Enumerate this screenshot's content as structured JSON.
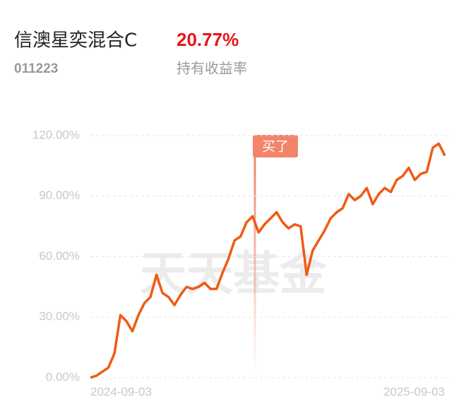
{
  "header": {
    "fund_name": "信澳星奕混合C",
    "code": "011223",
    "return_value": "20.77%",
    "return_label": "持有收益率"
  },
  "watermark": "天天基金",
  "chart_data": {
    "type": "line",
    "annotation": "买了",
    "color": "#f05a14",
    "grid": true,
    "ylim": [
      0,
      120
    ],
    "yticks": [
      {
        "value": 0,
        "label": "0.00%"
      },
      {
        "value": 30,
        "label": "30.00%"
      },
      {
        "value": 60,
        "label": "60.00%"
      },
      {
        "value": 90,
        "label": "90.00%"
      },
      {
        "value": 120,
        "label": "120.00%"
      }
    ],
    "categories": [
      "2024-09-03",
      null,
      null,
      null,
      null,
      null,
      null,
      null,
      null,
      null,
      null,
      null,
      null,
      null,
      null,
      null,
      null,
      null,
      null,
      null,
      null,
      null,
      null,
      null,
      null,
      null,
      null,
      null,
      null,
      null,
      null,
      null,
      null,
      null,
      null,
      null,
      null,
      null,
      null,
      null,
      null,
      null,
      null,
      null,
      null,
      null,
      null,
      null,
      null,
      null,
      null,
      null,
      null,
      null,
      null,
      null,
      null,
      null,
      null,
      "2025-09-03"
    ],
    "values": [
      0,
      1,
      3,
      5,
      12,
      31,
      28,
      23,
      31,
      37,
      40,
      51,
      42,
      40,
      36,
      41,
      45,
      44,
      45,
      47,
      44,
      44,
      52,
      59,
      68,
      70,
      77,
      80,
      72,
      76,
      79,
      82,
      77,
      74,
      76,
      75,
      51,
      63,
      68,
      73,
      79,
      82,
      84,
      91,
      88,
      90,
      94,
      86,
      91,
      94,
      92,
      98,
      100,
      104,
      98,
      101,
      102,
      114,
      116,
      110
    ]
  }
}
